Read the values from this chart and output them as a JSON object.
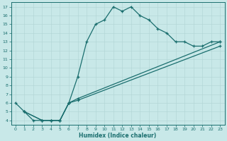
{
  "xlabel": "Humidex (Indice chaleur)",
  "bg_color": "#c8e8e8",
  "line_color": "#1a6e6e",
  "grid_color": "#b0d4d4",
  "xlim": [
    -0.5,
    23.5
  ],
  "ylim": [
    3.5,
    17.5
  ],
  "xticks": [
    0,
    1,
    2,
    3,
    4,
    5,
    6,
    7,
    8,
    9,
    10,
    11,
    12,
    13,
    14,
    15,
    16,
    17,
    18,
    19,
    20,
    21,
    22,
    23
  ],
  "yticks": [
    4,
    5,
    6,
    7,
    8,
    9,
    10,
    11,
    12,
    13,
    14,
    15,
    16,
    17
  ],
  "line1_x": [
    0,
    1,
    2,
    3,
    4,
    5,
    6,
    7,
    8,
    9,
    10,
    11,
    12,
    13,
    14,
    15,
    16,
    17,
    18,
    19,
    20,
    21,
    22,
    23
  ],
  "line1_y": [
    6.0,
    5.0,
    4.0,
    4.0,
    4.0,
    4.0,
    6.0,
    9.0,
    13.0,
    15.0,
    15.5,
    17.0,
    16.5,
    17.0,
    16.0,
    15.5,
    14.5,
    14.0,
    13.0,
    13.0,
    12.5,
    12.5,
    13.0,
    13.0
  ],
  "line2_x": [
    1,
    3,
    4,
    5,
    6,
    7,
    23
  ],
  "line2_y": [
    5.0,
    4.0,
    4.0,
    4.0,
    6.0,
    6.5,
    13.0
  ],
  "line3_x": [
    1,
    3,
    4,
    5,
    6,
    7,
    23
  ],
  "line3_y": [
    5.0,
    4.0,
    4.0,
    4.0,
    6.0,
    6.3,
    12.5
  ]
}
